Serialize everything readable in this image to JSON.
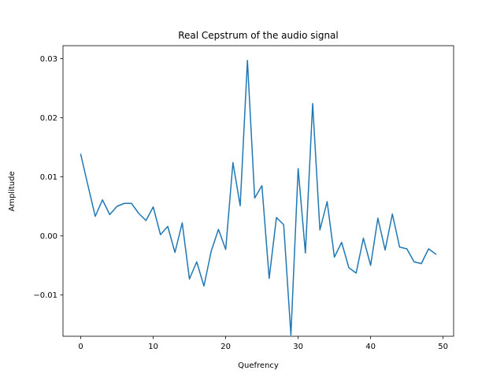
{
  "chart_data": {
    "type": "line",
    "title": "Real Cepstrum of the audio signal",
    "xlabel": "Quefrency",
    "ylabel": "Amplitude",
    "xlim": [
      -2.45,
      51.45
    ],
    "ylim": [
      -0.017,
      0.0322
    ],
    "xticks": [
      0,
      10,
      20,
      30,
      40,
      50
    ],
    "xtick_labels": [
      "0",
      "10",
      "20",
      "30",
      "40",
      "50"
    ],
    "yticks": [
      -0.01,
      0.0,
      0.01,
      0.02,
      0.03
    ],
    "ytick_labels": [
      "−0.01",
      "0.00",
      "0.01",
      "0.02",
      "0.03"
    ],
    "grid": false,
    "series": [
      {
        "name": "cepstrum",
        "color": "#1f77b4",
        "x": [
          0,
          1,
          2,
          3,
          4,
          5,
          6,
          7,
          8,
          9,
          10,
          11,
          12,
          13,
          14,
          15,
          16,
          17,
          18,
          19,
          20,
          21,
          22,
          23,
          24,
          25,
          26,
          27,
          28,
          29,
          30,
          31,
          32,
          33,
          34,
          35,
          36,
          37,
          38,
          39,
          40,
          41,
          42,
          43,
          44,
          45,
          46,
          47,
          48,
          49
        ],
        "values": [
          0.0138,
          0.0085,
          0.0033,
          0.0061,
          0.0036,
          0.005,
          0.0055,
          0.0055,
          0.0038,
          0.0026,
          0.0049,
          0.0002,
          0.0016,
          -0.0028,
          0.0022,
          -0.0073,
          -0.0044,
          -0.0085,
          -0.0026,
          0.0011,
          -0.0023,
          0.0124,
          0.0051,
          0.0297,
          0.0064,
          0.0085,
          -0.0072,
          0.0031,
          0.0019,
          -0.0168,
          0.0114,
          -0.0029,
          0.0224,
          0.001,
          0.0058,
          -0.0036,
          -0.0011,
          -0.0054,
          -0.0063,
          -0.0004,
          -0.005,
          0.003,
          -0.0024,
          0.0037,
          -0.0019,
          -0.0022,
          -0.0044,
          -0.0047,
          -0.0022,
          -0.0031
        ]
      }
    ]
  }
}
